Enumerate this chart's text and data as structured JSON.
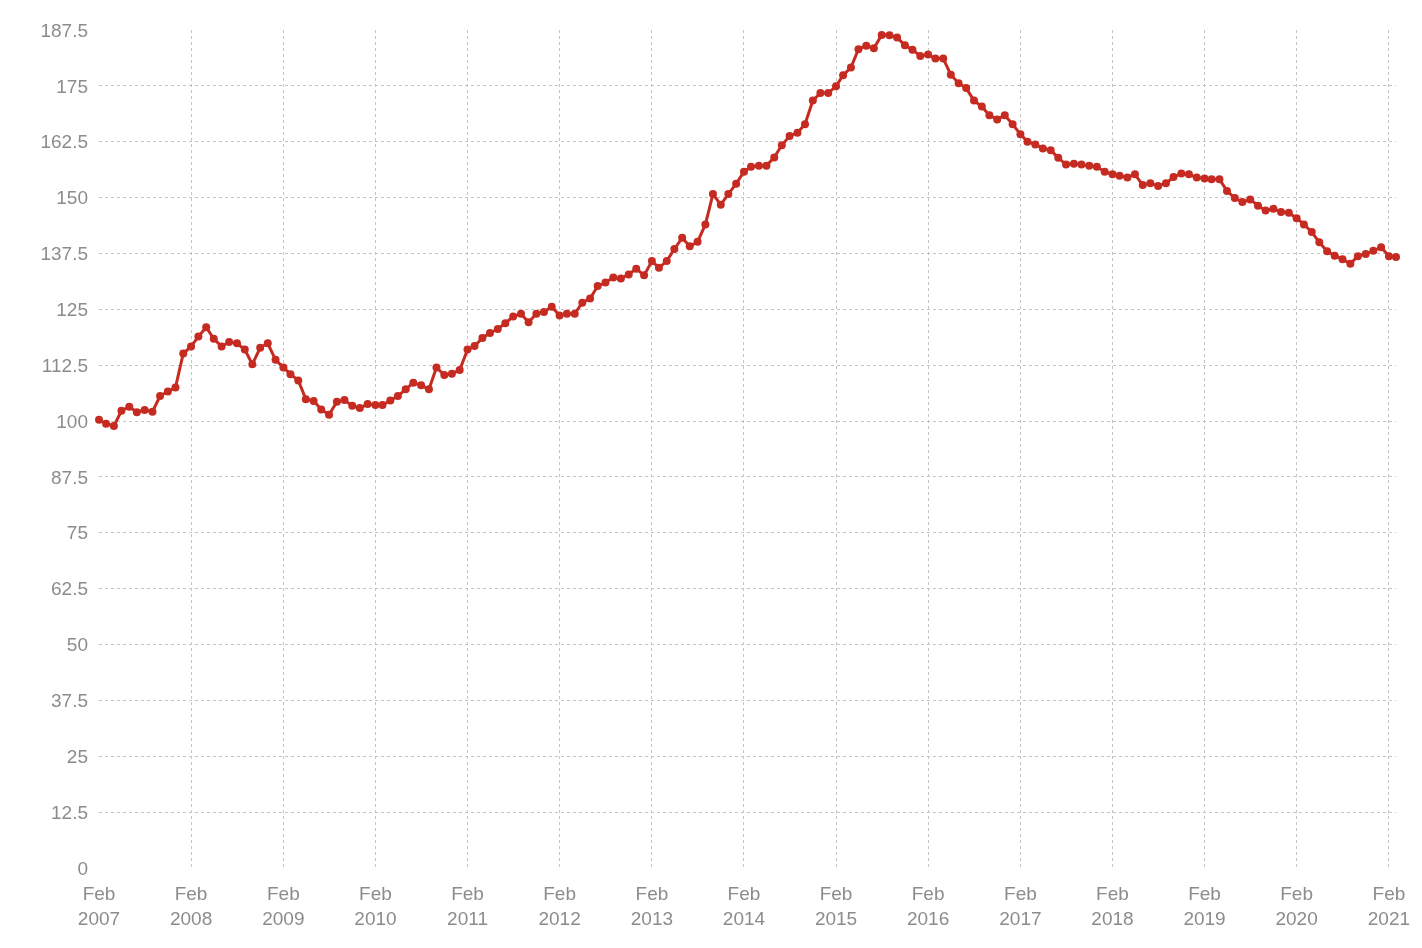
{
  "chart_data": {
    "type": "line",
    "x": [
      "2007-02",
      "2007-03",
      "2007-04",
      "2007-05",
      "2007-06",
      "2007-07",
      "2007-08",
      "2007-09",
      "2007-10",
      "2007-11",
      "2007-12",
      "2008-01",
      "2008-02",
      "2008-03",
      "2008-04",
      "2008-05",
      "2008-06",
      "2008-07",
      "2008-08",
      "2008-09",
      "2008-10",
      "2008-11",
      "2008-12",
      "2009-01",
      "2009-02",
      "2009-03",
      "2009-04",
      "2009-05",
      "2009-06",
      "2009-07",
      "2009-08",
      "2009-09",
      "2009-10",
      "2009-11",
      "2009-12",
      "2010-01",
      "2010-02",
      "2010-03",
      "2010-04",
      "2010-05",
      "2010-06",
      "2010-07",
      "2010-08",
      "2010-09",
      "2010-10",
      "2010-11",
      "2010-12",
      "2011-01",
      "2011-02",
      "2011-03",
      "2011-04",
      "2011-05",
      "2011-06",
      "2011-07",
      "2011-08",
      "2011-09",
      "2011-10",
      "2011-11",
      "2011-12",
      "2012-01",
      "2012-02",
      "2012-03",
      "2012-04",
      "2012-05",
      "2012-06",
      "2012-07",
      "2012-08",
      "2012-09",
      "2012-10",
      "2012-11",
      "2012-12",
      "2013-01",
      "2013-02",
      "2013-03",
      "2013-04",
      "2013-05",
      "2013-06",
      "2013-07",
      "2013-08",
      "2013-09",
      "2013-10",
      "2013-11",
      "2013-12",
      "2014-01",
      "2014-02",
      "2014-03",
      "2014-04",
      "2014-05",
      "2014-06",
      "2014-07",
      "2014-08",
      "2014-09",
      "2014-10",
      "2014-11",
      "2014-12",
      "2015-01",
      "2015-02",
      "2015-03",
      "2015-04",
      "2015-05",
      "2015-06",
      "2015-07",
      "2015-08",
      "2015-09",
      "2015-10",
      "2015-11",
      "2015-12",
      "2016-01",
      "2016-02",
      "2016-03",
      "2016-04",
      "2016-05",
      "2016-06",
      "2016-07",
      "2016-08",
      "2016-09",
      "2016-10",
      "2016-11",
      "2016-12",
      "2017-01",
      "2017-02",
      "2017-03",
      "2017-04",
      "2017-05",
      "2017-06",
      "2017-07",
      "2017-08",
      "2017-09",
      "2017-10",
      "2017-11",
      "2017-12",
      "2018-01",
      "2018-02",
      "2018-03",
      "2018-04",
      "2018-05",
      "2018-06",
      "2018-07",
      "2018-08",
      "2018-09",
      "2018-10",
      "2018-11",
      "2018-12",
      "2019-01",
      "2019-02",
      "2019-03",
      "2019-04",
      "2019-05",
      "2019-06",
      "2019-07",
      "2019-08",
      "2019-09",
      "2019-10",
      "2019-11",
      "2019-12",
      "2020-01",
      "2020-02",
      "2020-03",
      "2020-04",
      "2020-05",
      "2020-06",
      "2020-07",
      "2020-08",
      "2020-09",
      "2020-10",
      "2020-11",
      "2020-12",
      "2021-01",
      "2021-02",
      "2021-03"
    ],
    "series": [
      {
        "color": "#c62b22",
        "values": [
          100.3,
          99.4,
          98.9,
          102.3,
          103.2,
          102.0,
          102.5,
          102.1,
          105.6,
          106.6,
          107.5,
          115.1,
          116.7,
          118.9,
          121.0,
          118.4,
          116.7,
          117.7,
          117.4,
          116.0,
          112.7,
          116.4,
          117.4,
          113.7,
          112.0,
          110.5,
          109.1,
          104.9,
          104.5,
          102.6,
          101.4,
          104.3,
          104.7,
          103.4,
          102.9,
          103.8,
          103.6,
          103.6,
          104.6,
          105.6,
          107.1,
          108.6,
          108.0,
          107.1,
          112.0,
          110.3,
          110.6,
          111.4,
          116.0,
          116.8,
          118.6,
          119.7,
          120.6,
          121.9,
          123.4,
          124.0,
          122.1,
          124.0,
          124.4,
          125.6,
          123.6,
          124.0,
          124.0,
          126.5,
          127.4,
          130.2,
          131.0,
          132.1,
          131.9,
          132.8,
          134.1,
          132.6,
          135.8,
          134.3,
          135.8,
          138.5,
          141.0,
          139.1,
          140.1,
          144.0,
          150.8,
          148.4,
          150.8,
          153.1,
          155.8,
          156.9,
          157.1,
          157.1,
          159.0,
          161.7,
          163.8,
          164.5,
          166.4,
          171.7,
          173.4,
          173.4,
          174.9,
          177.4,
          179.1,
          183.2,
          184.0,
          183.4,
          186.4,
          186.3,
          185.8,
          184.1,
          183.1,
          181.7,
          182.0,
          181.1,
          181.1,
          177.5,
          175.6,
          174.5,
          171.7,
          170.4,
          168.4,
          167.5,
          168.4,
          166.4,
          164.2,
          162.5,
          161.9,
          161.0,
          160.6,
          158.9,
          157.4,
          157.6,
          157.4,
          157.1,
          156.9,
          155.8,
          155.2,
          154.9,
          154.5,
          155.2,
          152.8,
          153.2,
          152.6,
          153.2,
          154.6,
          155.4,
          155.2,
          154.5,
          154.3,
          154.1,
          154.1,
          151.5,
          149.9,
          149.0,
          149.6,
          148.2,
          147.1,
          147.5,
          146.8,
          146.6,
          145.4,
          144.0,
          142.3,
          140.0,
          138.0,
          137.0,
          136.2,
          135.2,
          136.9,
          137.4,
          138.1,
          138.9,
          136.9,
          136.7
        ]
      }
    ],
    "xlim": [
      "2007-02",
      "2021-03"
    ],
    "xticks": [
      {
        "value": "2007-02",
        "label": "Feb 2007"
      },
      {
        "value": "2008-02",
        "label": "Feb 2008"
      },
      {
        "value": "2009-02",
        "label": "Feb 2009"
      },
      {
        "value": "2010-02",
        "label": "Feb 2010"
      },
      {
        "value": "2011-02",
        "label": "Feb 2011"
      },
      {
        "value": "2012-02",
        "label": "Feb 2012"
      },
      {
        "value": "2013-02",
        "label": "Feb 2013"
      },
      {
        "value": "2014-02",
        "label": "Feb 2014"
      },
      {
        "value": "2015-02",
        "label": "Feb 2015"
      },
      {
        "value": "2016-02",
        "label": "Feb 2016"
      },
      {
        "value": "2017-02",
        "label": "Feb 2017"
      },
      {
        "value": "2018-02",
        "label": "Feb 2018"
      },
      {
        "value": "2019-02",
        "label": "Feb 2019"
      },
      {
        "value": "2020-02",
        "label": "Feb 2020"
      },
      {
        "value": "2021-02",
        "label": "Feb 2021"
      }
    ],
    "ylim": [
      0,
      187.5
    ],
    "yticks": [
      0,
      12.5,
      25,
      37.5,
      50,
      62.5,
      75,
      87.5,
      100,
      112.5,
      125,
      137.5,
      150,
      162.5,
      175,
      187.5
    ],
    "grid": true,
    "marker": "circle",
    "line_style": "solid"
  }
}
